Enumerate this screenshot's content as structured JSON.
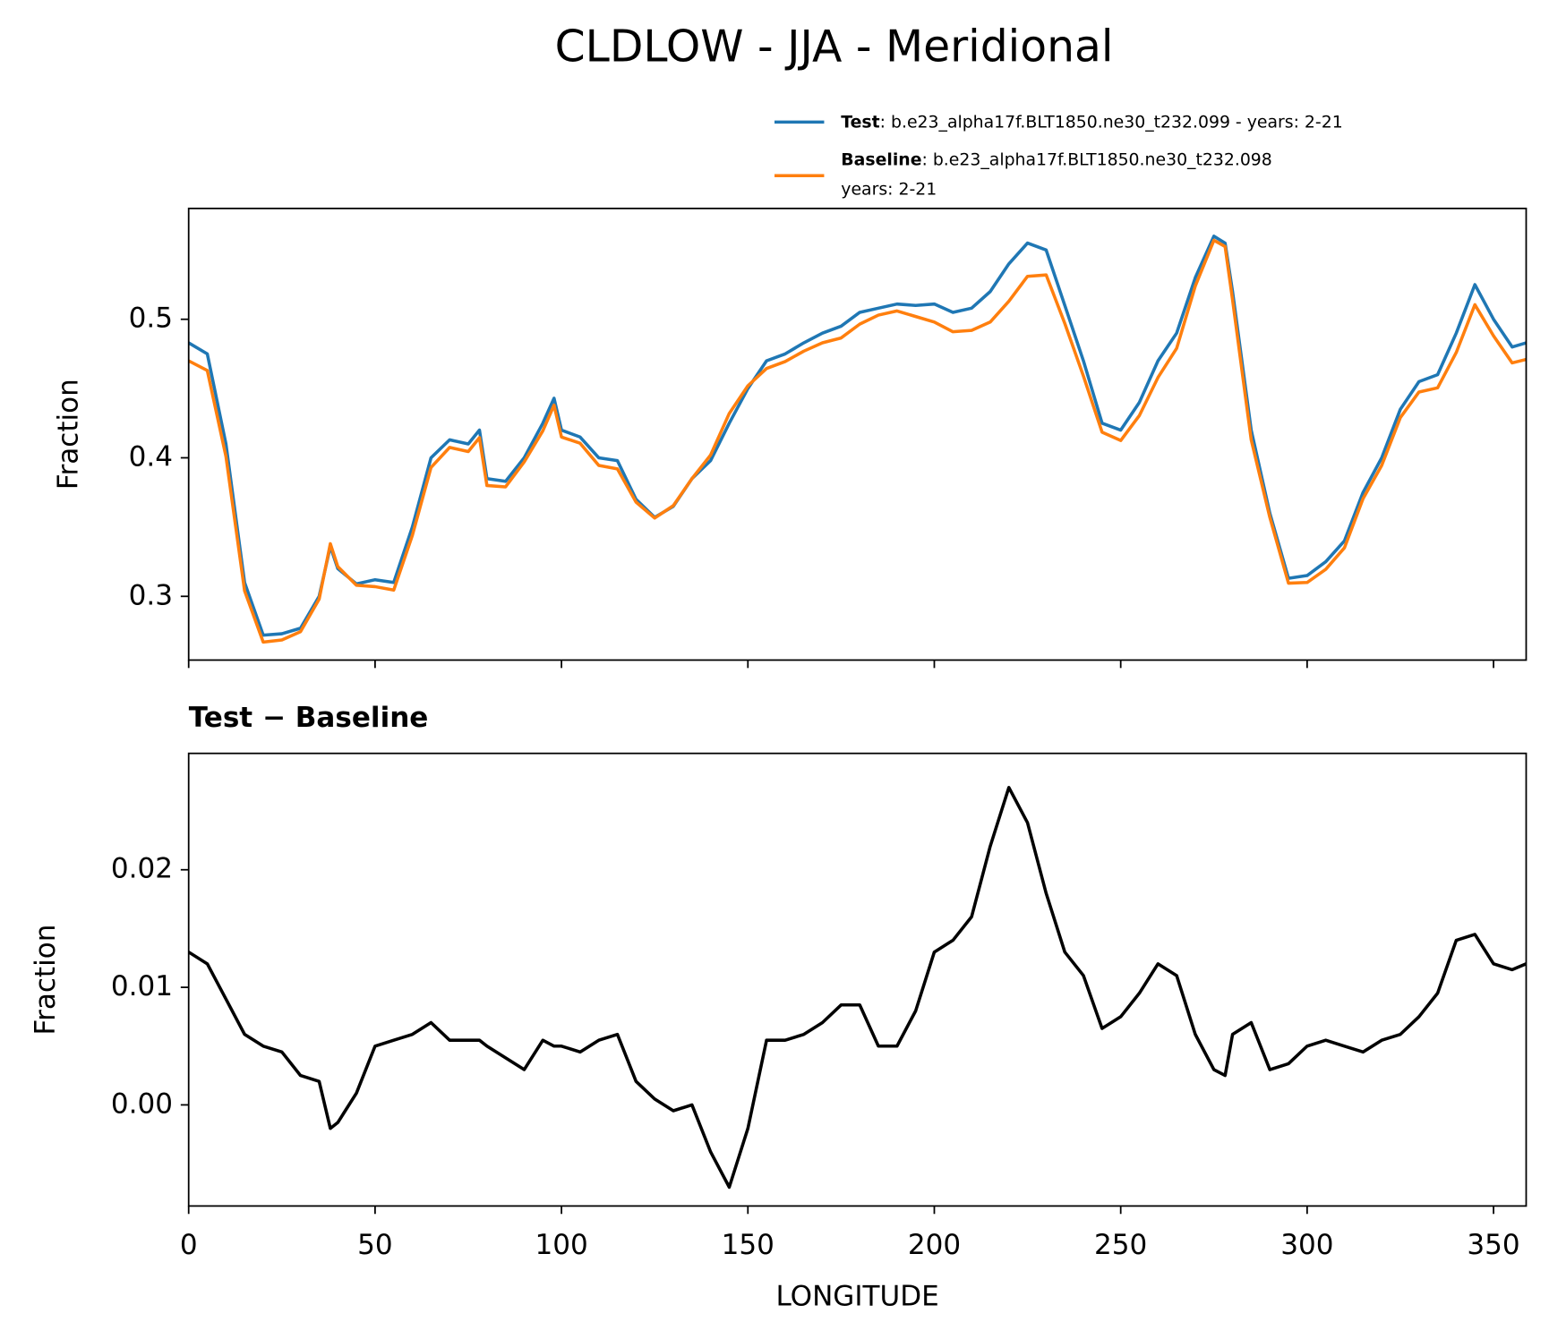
{
  "chart_data": [
    {
      "type": "line",
      "title": "CLDLOW - JJA - Meridional",
      "ylabel": "Fraction",
      "x": [
        0,
        5,
        10,
        15,
        20,
        25,
        30,
        35,
        38,
        40,
        45,
        50,
        55,
        60,
        65,
        70,
        75,
        78,
        80,
        85,
        90,
        95,
        98,
        100,
        105,
        110,
        115,
        120,
        125,
        130,
        135,
        140,
        145,
        150,
        155,
        160,
        165,
        170,
        175,
        180,
        185,
        190,
        195,
        200,
        205,
        210,
        215,
        220,
        225,
        230,
        235,
        240,
        245,
        250,
        255,
        260,
        265,
        270,
        275,
        278,
        280,
        285,
        290,
        295,
        300,
        305,
        310,
        315,
        320,
        325,
        330,
        335,
        340,
        345,
        350,
        355,
        358.75
      ],
      "xlim": [
        0,
        358.75
      ],
      "xticks": [
        0,
        50,
        100,
        150,
        200,
        250,
        300,
        350
      ],
      "show_xtick_labels": false,
      "ylim": [
        0.254,
        0.58
      ],
      "yticks": [
        0.3,
        0.4,
        0.5
      ],
      "series": [
        {
          "name": "Test",
          "label": [
            ": b.e23_alpha17f.BLT1850.ne30_t232.099 - years: 2-21"
          ],
          "color": "#1f77b4",
          "values": [
            0.483,
            0.475,
            0.41,
            0.31,
            0.272,
            0.273,
            0.277,
            0.3,
            0.336,
            0.32,
            0.309,
            0.312,
            0.31,
            0.35,
            0.4,
            0.413,
            0.41,
            0.42,
            0.385,
            0.383,
            0.4,
            0.425,
            0.443,
            0.42,
            0.415,
            0.4,
            0.398,
            0.37,
            0.357,
            0.365,
            0.385,
            0.398,
            0.425,
            0.45,
            0.47,
            0.475,
            0.483,
            0.49,
            0.495,
            0.505,
            0.508,
            0.511,
            0.51,
            0.511,
            0.505,
            0.508,
            0.52,
            0.54,
            0.555,
            0.55,
            0.51,
            0.47,
            0.425,
            0.42,
            0.44,
            0.47,
            0.49,
            0.53,
            0.56,
            0.555,
            0.52,
            0.42,
            0.36,
            0.313,
            0.315,
            0.325,
            0.34,
            0.375,
            0.4,
            0.435,
            0.455,
            0.46,
            0.49,
            0.525,
            0.5,
            0.48,
            0.483
          ]
        },
        {
          "name": "Baseline",
          "label": [
            ": b.e23_alpha17f.BLT1850.ne30_t232.098",
            "years: 2-21"
          ],
          "color": "#ff7f0e",
          "values": [
            0.47,
            0.463,
            0.401,
            0.304,
            0.267,
            0.2685,
            0.2745,
            0.298,
            0.338,
            0.3215,
            0.308,
            0.307,
            0.3045,
            0.344,
            0.393,
            0.4075,
            0.4045,
            0.4145,
            0.38,
            0.379,
            0.397,
            0.4195,
            0.438,
            0.415,
            0.4105,
            0.3945,
            0.392,
            0.368,
            0.3565,
            0.3655,
            0.385,
            0.402,
            0.432,
            0.452,
            0.4645,
            0.4695,
            0.477,
            0.483,
            0.4865,
            0.4965,
            0.503,
            0.506,
            0.502,
            0.498,
            0.491,
            0.492,
            0.498,
            0.513,
            0.531,
            0.532,
            0.497,
            0.459,
            0.4185,
            0.4125,
            0.4305,
            0.458,
            0.479,
            0.524,
            0.557,
            0.5525,
            0.514,
            0.413,
            0.357,
            0.3095,
            0.31,
            0.3195,
            0.335,
            0.3705,
            0.3945,
            0.429,
            0.4475,
            0.4505,
            0.476,
            0.5105,
            0.488,
            0.4685,
            0.471
          ]
        }
      ]
    },
    {
      "type": "line",
      "title": "Test − Baseline",
      "ylabel": "Fraction",
      "xlabel": "LONGITUDE",
      "x": [
        0,
        5,
        10,
        15,
        20,
        25,
        30,
        35,
        38,
        40,
        45,
        50,
        55,
        60,
        65,
        70,
        75,
        78,
        80,
        85,
        90,
        95,
        98,
        100,
        105,
        110,
        115,
        120,
        125,
        130,
        135,
        140,
        145,
        150,
        155,
        160,
        165,
        170,
        175,
        180,
        185,
        190,
        195,
        200,
        205,
        210,
        215,
        220,
        225,
        230,
        235,
        240,
        245,
        250,
        255,
        260,
        265,
        270,
        275,
        278,
        280,
        285,
        290,
        295,
        300,
        305,
        310,
        315,
        320,
        325,
        330,
        335,
        340,
        345,
        350,
        355,
        358.75
      ],
      "xlim": [
        0,
        358.75
      ],
      "xticks": [
        0,
        50,
        100,
        150,
        200,
        250,
        300,
        350
      ],
      "show_xtick_labels": true,
      "ylim": [
        -0.0086,
        0.0299
      ],
      "yticks": [
        {
          "value": 0,
          "label": "0.00"
        },
        {
          "value": 0.01,
          "label": "0.01"
        },
        {
          "value": 0.02,
          "label": "0.02"
        }
      ],
      "series": [
        {
          "color": "#000000",
          "values": [
            0.013,
            0.012,
            0.009,
            0.006,
            0.005,
            0.0045,
            0.0025,
            0.002,
            -0.002,
            -0.0015,
            0.001,
            0.005,
            0.0055,
            0.006,
            0.007,
            0.0055,
            0.0055,
            0.0055,
            0.005,
            0.004,
            0.003,
            0.0055,
            0.005,
            0.005,
            0.0045,
            0.0055,
            0.006,
            0.002,
            0.0005,
            -0.0005,
            0,
            -0.004,
            -0.007,
            -0.002,
            0.0055,
            0.0055,
            0.006,
            0.007,
            0.0085,
            0.0085,
            0.005,
            0.005,
            0.008,
            0.013,
            0.014,
            0.016,
            0.022,
            0.027,
            0.024,
            0.018,
            0.013,
            0.011,
            0.0065,
            0.0075,
            0.0095,
            0.012,
            0.011,
            0.006,
            0.003,
            0.0025,
            0.006,
            0.007,
            0.003,
            0.0035,
            0.005,
            0.0055,
            0.005,
            0.0045,
            0.0055,
            0.006,
            0.0075,
            0.0095,
            0.014,
            0.0145,
            0.012,
            0.0115,
            0.012
          ]
        }
      ]
    }
  ]
}
